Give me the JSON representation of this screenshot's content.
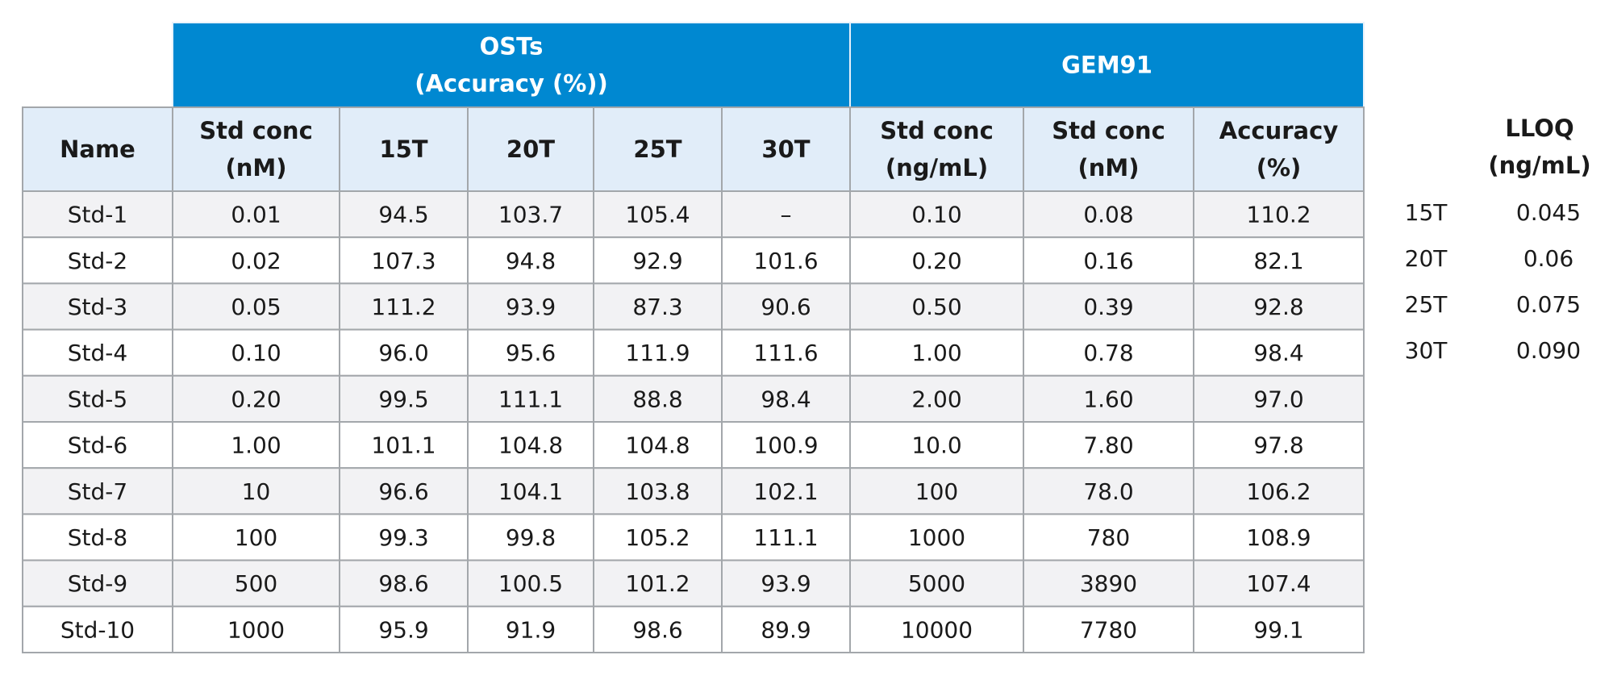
{
  "table": {
    "group_headers": [
      [
        "OSTs",
        "(Accuracy (%))"
      ],
      [
        "GEM91"
      ]
    ],
    "columns": [
      [
        "Name"
      ],
      [
        "Std conc",
        "(nM)"
      ],
      [
        "15T"
      ],
      [
        "20T"
      ],
      [
        "25T"
      ],
      [
        "30T"
      ],
      [
        "Std conc",
        "(ng/mL)"
      ],
      [
        "Std conc",
        "(nM)"
      ],
      [
        "Accuracy",
        "(%)"
      ]
    ],
    "rows": [
      [
        "Std-1",
        "0.01",
        "94.5",
        "103.7",
        "105.4",
        "–",
        "0.10",
        "0.08",
        "110.2"
      ],
      [
        "Std-2",
        "0.02",
        "107.3",
        "94.8",
        "92.9",
        "101.6",
        "0.20",
        "0.16",
        "82.1"
      ],
      [
        "Std-3",
        "0.05",
        "111.2",
        "93.9",
        "87.3",
        "90.6",
        "0.50",
        "0.39",
        "92.8"
      ],
      [
        "Std-4",
        "0.10",
        "96.0",
        "95.6",
        "111.9",
        "111.6",
        "1.00",
        "0.78",
        "98.4"
      ],
      [
        "Std-5",
        "0.20",
        "99.5",
        "111.1",
        "88.8",
        "98.4",
        "2.00",
        "1.60",
        "97.0"
      ],
      [
        "Std-6",
        "1.00",
        "101.1",
        "104.8",
        "104.8",
        "100.9",
        "10.0",
        "7.80",
        "97.8"
      ],
      [
        "Std-7",
        "10",
        "96.6",
        "104.1",
        "103.8",
        "102.1",
        "100",
        "78.0",
        "106.2"
      ],
      [
        "Std-8",
        "100",
        "99.3",
        "99.8",
        "105.2",
        "111.1",
        "1000",
        "780",
        "108.9"
      ],
      [
        "Std-9",
        "500",
        "98.6",
        "100.5",
        "101.2",
        "93.9",
        "5000",
        "3890",
        "107.4"
      ],
      [
        "Std-10",
        "1000",
        "95.9",
        "91.9",
        "98.6",
        "89.9",
        "10000",
        "7780",
        "99.1"
      ]
    ]
  },
  "lloq": {
    "header": [
      "LLOQ",
      "(ng/mL)"
    ],
    "rows": [
      [
        "15T",
        "0.045"
      ],
      [
        "20T",
        "0.06"
      ],
      [
        "25T",
        "0.075"
      ],
      [
        "30T",
        "0.090"
      ]
    ]
  }
}
